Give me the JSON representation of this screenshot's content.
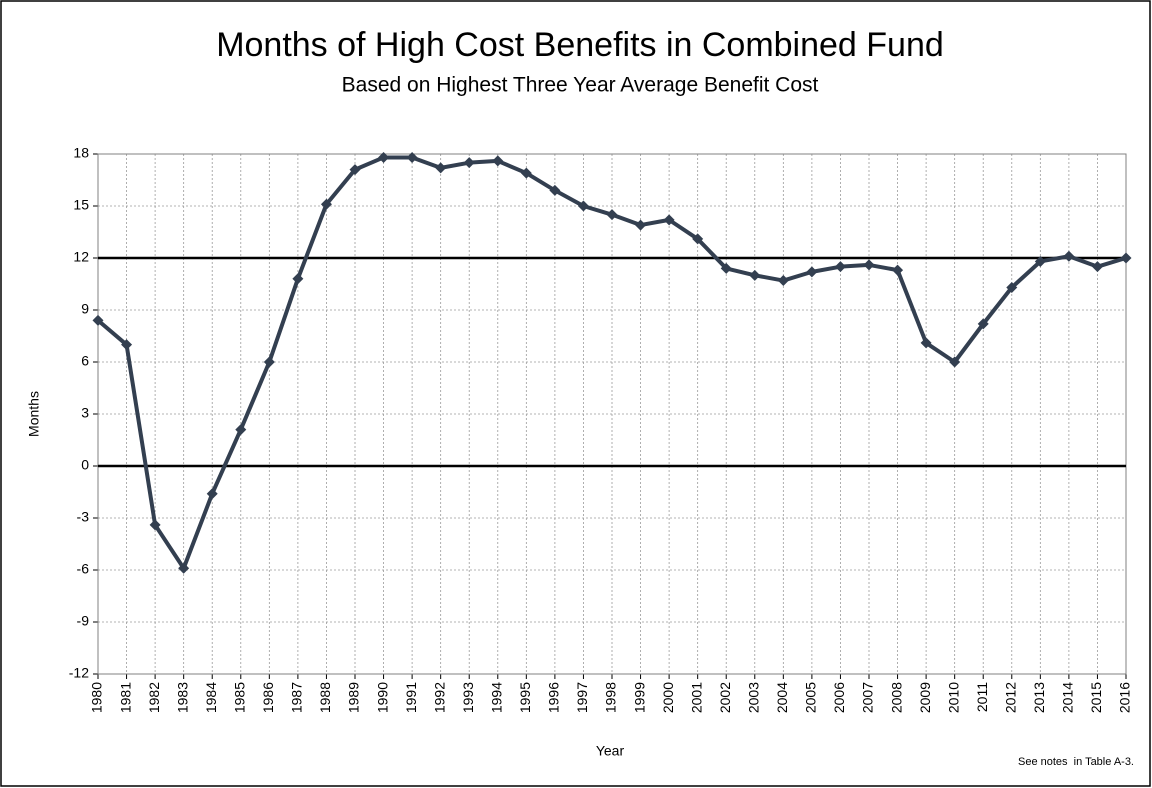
{
  "chart_data": {
    "type": "line",
    "title": "Months of High Cost Benefits in Combined Fund",
    "subtitle": "Based on Highest Three Year Average Benefit Cost",
    "x_label": "Year",
    "y_label": "Months",
    "note": "See notes  in Table A-3.",
    "categories": [
      "1980",
      "1981",
      "1982",
      "1983",
      "1984",
      "1985",
      "1986",
      "1987",
      "1988",
      "1989",
      "1990",
      "1991",
      "1992",
      "1993",
      "1994",
      "1995",
      "1996",
      "1997",
      "1998",
      "1999",
      "2000",
      "2001",
      "2002",
      "2003",
      "2004",
      "2005",
      "2006",
      "2007",
      "2008",
      "2009",
      "2010",
      "2011",
      "2012",
      "2013",
      "2014",
      "2015",
      "2016"
    ],
    "series": [
      {
        "name": "Months",
        "color": "#333f50",
        "values": [
          8.4,
          7.0,
          -3.4,
          -5.9,
          -1.6,
          2.1,
          6.0,
          10.8,
          15.1,
          17.1,
          17.8,
          17.8,
          17.2,
          17.5,
          17.6,
          16.9,
          15.9,
          15.0,
          14.5,
          13.9,
          14.2,
          13.1,
          11.4,
          11.0,
          10.7,
          11.2,
          11.5,
          11.6,
          11.3,
          7.1,
          6.0,
          8.2,
          10.3,
          11.8,
          12.1,
          11.5,
          12.0
        ]
      }
    ],
    "ylim": [
      -12,
      18
    ],
    "yticks": [
      -12,
      -9,
      -6,
      -3,
      0,
      3,
      6,
      9,
      12,
      15,
      18
    ],
    "reference_lines": [
      0,
      12
    ],
    "grid": true,
    "legend": false
  }
}
